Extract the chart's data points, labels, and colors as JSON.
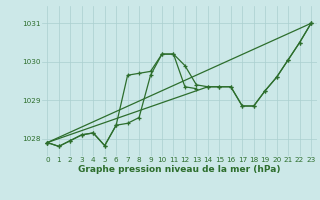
{
  "xlabel": "Graphe pression niveau de la mer (hPa)",
  "bg_color": "#cce8e8",
  "line_color": "#2d6e2d",
  "grid_color": "#aacfcf",
  "ylim": [
    1027.55,
    1031.45
  ],
  "xlim": [
    -0.5,
    23.5
  ],
  "yticks": [
    1028,
    1029,
    1030,
    1031
  ],
  "xticks": [
    0,
    1,
    2,
    3,
    4,
    5,
    6,
    7,
    8,
    9,
    10,
    11,
    12,
    13,
    14,
    15,
    16,
    17,
    18,
    19,
    20,
    21,
    22,
    23
  ],
  "series": [
    [
      1027.9,
      1027.8,
      1027.95,
      1028.1,
      1028.15,
      1027.82,
      1028.35,
      1028.4,
      1028.55,
      1029.65,
      1030.2,
      1030.2,
      1029.9,
      1029.4,
      1029.35,
      1029.35,
      1029.35,
      1028.85,
      1028.85,
      1029.25,
      1029.6,
      1030.05,
      1030.5,
      1031.0
    ],
    [
      1027.9,
      1027.8,
      1027.95,
      1028.1,
      1028.15,
      1027.82,
      1028.35,
      1029.65,
      1029.7,
      1029.75,
      1030.2,
      1030.2,
      1029.35,
      1029.3,
      null,
      null,
      null,
      null,
      null,
      null,
      null,
      null,
      null,
      null
    ],
    [
      1027.9,
      null,
      null,
      null,
      null,
      null,
      null,
      null,
      null,
      null,
      null,
      null,
      null,
      null,
      1029.35,
      1029.35,
      1029.35,
      1028.85,
      1028.85,
      1029.25,
      1029.6,
      1030.05,
      1030.5,
      1031.0
    ],
    [
      1027.9,
      null,
      null,
      null,
      null,
      null,
      null,
      null,
      null,
      null,
      null,
      null,
      null,
      null,
      null,
      null,
      null,
      null,
      null,
      null,
      null,
      null,
      null,
      1031.0
    ]
  ],
  "marker": "+",
  "markersize": 3.5,
  "linewidth": 0.9,
  "xlabel_fontsize": 6.5,
  "tick_fontsize": 5.2
}
